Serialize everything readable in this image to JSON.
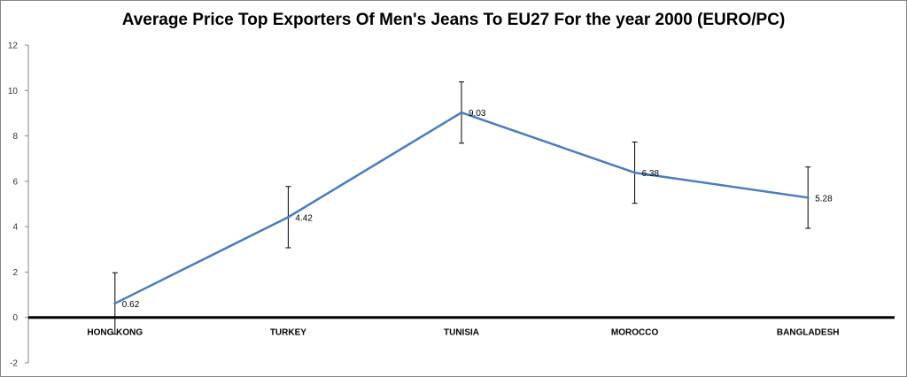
{
  "chart_data": {
    "type": "line",
    "title": "Average Price Top Exporters Of Men's Jeans To EU27 For the year 2000 (EURO/PC)",
    "categories": [
      "HONG KONG",
      "TURKEY",
      "TUNISIA",
      "MOROCCO",
      "BANGLADESH"
    ],
    "series": [
      {
        "values": [
          0.62,
          4.42,
          9.03,
          6.38,
          5.28
        ],
        "data_labels": [
          "0.62",
          "4.42",
          "9.03",
          "6.38",
          "5.28"
        ],
        "error_bars": {
          "plus": 1.35,
          "minus": 1.35
        },
        "color": "#4a7ebb"
      }
    ],
    "ylim": [
      -2,
      12
    ],
    "yticks": [
      -2,
      0,
      2,
      4,
      6,
      8,
      10,
      12
    ],
    "xlabel": "",
    "ylabel": "",
    "grid": false,
    "legend": "none",
    "zero_line_color": "#000000"
  }
}
